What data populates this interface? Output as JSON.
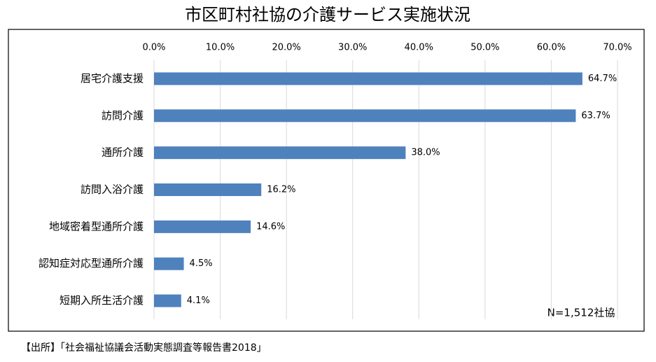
{
  "chart_data": {
    "type": "bar",
    "orientation": "horizontal",
    "title": "市区町村社協の介護サービス実施状況",
    "categories": [
      "居宅介護支援",
      "訪問介護",
      "通所介護",
      "訪問入浴介護",
      "地域密着型通所介護",
      "認知症対応型通所介護",
      "短期入所生活介護"
    ],
    "values": [
      64.7,
      63.7,
      38.0,
      16.2,
      14.6,
      4.5,
      4.1
    ],
    "value_labels": [
      "64.7%",
      "63.7%",
      "38.0%",
      "16.2%",
      "14.6%",
      "4.5%",
      "4.1%"
    ],
    "color": "#4f81bd",
    "xlim": [
      0,
      70
    ],
    "xticks": [
      {
        "value": 0,
        "label": "0.0%"
      },
      {
        "value": 10,
        "label": "10.0%"
      },
      {
        "value": 20,
        "label": "20.0%"
      },
      {
        "value": 30,
        "label": "30.0%"
      },
      {
        "value": 40,
        "label": "40.0%"
      },
      {
        "value": 50,
        "label": "50.0%"
      },
      {
        "value": 60,
        "label": "60.0%"
      },
      {
        "value": 70,
        "label": "70.0%"
      }
    ],
    "grid": true,
    "annotation": "N=1,512社協",
    "source": "【出所】「社会福祉協議会活動実態調査等報告書2018」"
  }
}
